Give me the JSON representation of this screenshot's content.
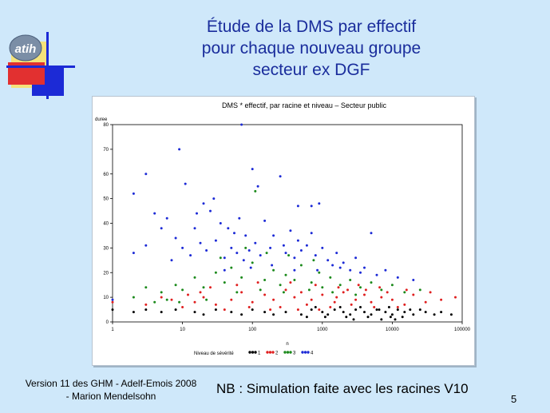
{
  "slide": {
    "title_lines": [
      "Étude de la DMS par effectif",
      "pour chaque nouveau groupe",
      "secteur ex DGF"
    ],
    "footer_left_lines": [
      "Version 11 des GHM - Adelf-Emois 2008",
      "- Marion Mendelsohn"
    ],
    "footer_note": "NB : Simulation faite avec les racines V10",
    "page_number": "5",
    "logo_text": "atih"
  },
  "colors": {
    "background": "#cfe8fa",
    "title": "#1a2d9c",
    "level1": "#000000",
    "level2": "#e02020",
    "level3": "#1c8a1c",
    "level4": "#1c2ad6"
  },
  "chart_data": {
    "type": "scatter",
    "title": "DMS * effectif, par racine et niveau – Secteur public",
    "xlabel": "n",
    "ylabel": "duree",
    "xscale": "log",
    "xlim": [
      1,
      100000
    ],
    "ylim": [
      0,
      80
    ],
    "xticks": [
      "1",
      "10",
      "100",
      "1000",
      "10000",
      "100000"
    ],
    "yticks": [
      "0",
      "10",
      "20",
      "30",
      "40",
      "50",
      "60",
      "70",
      "80"
    ],
    "grid": false,
    "legend_title": "Niveau de sévérité",
    "legend_placement": "bottom",
    "series": [
      {
        "name": "1",
        "color": "#000000",
        "points": [
          [
            1,
            5
          ],
          [
            2,
            4
          ],
          [
            3,
            5
          ],
          [
            5,
            4
          ],
          [
            8,
            5
          ],
          [
            15,
            4
          ],
          [
            20,
            3
          ],
          [
            30,
            5
          ],
          [
            50,
            4
          ],
          [
            70,
            3
          ],
          [
            100,
            5
          ],
          [
            150,
            4
          ],
          [
            200,
            3
          ],
          [
            300,
            4
          ],
          [
            500,
            3
          ],
          [
            700,
            5
          ],
          [
            1000,
            4
          ],
          [
            1200,
            3
          ],
          [
            1500,
            5
          ],
          [
            2000,
            4
          ],
          [
            2500,
            3
          ],
          [
            3000,
            5
          ],
          [
            4000,
            4
          ],
          [
            5000,
            3
          ],
          [
            6000,
            5
          ],
          [
            8000,
            4
          ],
          [
            10000,
            3
          ],
          [
            12000,
            5
          ],
          [
            15000,
            4
          ],
          [
            20000,
            3
          ],
          [
            25000,
            5
          ],
          [
            30000,
            4
          ],
          [
            40000,
            3
          ],
          [
            50000,
            4
          ],
          [
            70000,
            3
          ],
          [
            800,
            6
          ],
          [
            1800,
            6
          ],
          [
            3500,
            6
          ],
          [
            6500,
            5
          ],
          [
            9000,
            6
          ],
          [
            18000,
            5
          ],
          [
            600,
            2
          ],
          [
            1100,
            2
          ],
          [
            2200,
            2
          ],
          [
            4500,
            2
          ],
          [
            9500,
            2
          ],
          [
            14000,
            2
          ],
          [
            2800,
            1
          ],
          [
            7000,
            1
          ],
          [
            11000,
            1
          ]
        ]
      },
      {
        "name": "2",
        "color": "#e02020",
        "points": [
          [
            1,
            8
          ],
          [
            3,
            7
          ],
          [
            7,
            9
          ],
          [
            10,
            6
          ],
          [
            15,
            8
          ],
          [
            20,
            10
          ],
          [
            30,
            7
          ],
          [
            50,
            9
          ],
          [
            70,
            12
          ],
          [
            100,
            8
          ],
          [
            150,
            11
          ],
          [
            200,
            9
          ],
          [
            300,
            13
          ],
          [
            400,
            10
          ],
          [
            500,
            12
          ],
          [
            700,
            9
          ],
          [
            1000,
            11
          ],
          [
            1500,
            8
          ],
          [
            2000,
            12
          ],
          [
            3000,
            9
          ],
          [
            4000,
            11
          ],
          [
            5000,
            8
          ],
          [
            7000,
            10
          ],
          [
            10000,
            9
          ],
          [
            15000,
            7
          ],
          [
            20000,
            11
          ],
          [
            30000,
            8
          ],
          [
            50000,
            9
          ],
          [
            80000,
            10
          ],
          [
            250,
            6
          ],
          [
            600,
            7
          ],
          [
            1300,
            6
          ],
          [
            2600,
            7
          ],
          [
            5500,
            6
          ],
          [
            12000,
            6
          ],
          [
            350,
            16
          ],
          [
            800,
            15
          ],
          [
            1700,
            14
          ],
          [
            3300,
            15
          ],
          [
            6600,
            14
          ],
          [
            25,
            14
          ],
          [
            60,
            15
          ],
          [
            120,
            16
          ],
          [
            40,
            5
          ],
          [
            90,
            6
          ],
          [
            180,
            5
          ],
          [
            450,
            5
          ],
          [
            900,
            5
          ],
          [
            1600,
            10
          ],
          [
            2300,
            13
          ],
          [
            4200,
            13
          ],
          [
            8500,
            12
          ],
          [
            16000,
            13
          ],
          [
            35000,
            12
          ],
          [
            18,
            12
          ],
          [
            12,
            11
          ],
          [
            5,
            10
          ]
        ]
      },
      {
        "name": "3",
        "color": "#1c8a1c",
        "points": [
          [
            2,
            10
          ],
          [
            3,
            14
          ],
          [
            5,
            12
          ],
          [
            8,
            15
          ],
          [
            10,
            13
          ],
          [
            15,
            18
          ],
          [
            20,
            14
          ],
          [
            30,
            20
          ],
          [
            40,
            16
          ],
          [
            50,
            22
          ],
          [
            70,
            18
          ],
          [
            100,
            24
          ],
          [
            150,
            17
          ],
          [
            200,
            21
          ],
          [
            250,
            15
          ],
          [
            300,
            19
          ],
          [
            400,
            17
          ],
          [
            500,
            23
          ],
          [
            700,
            16
          ],
          [
            900,
            20
          ],
          [
            1000,
            14
          ],
          [
            1300,
            18
          ],
          [
            1800,
            15
          ],
          [
            2500,
            17
          ],
          [
            3500,
            14
          ],
          [
            5000,
            16
          ],
          [
            7000,
            13
          ],
          [
            10000,
            15
          ],
          [
            15000,
            12
          ],
          [
            25000,
            13
          ],
          [
            60,
            12
          ],
          [
            130,
            13
          ],
          [
            280,
            12
          ],
          [
            650,
            13
          ],
          [
            1400,
            12
          ],
          [
            3000,
            11
          ],
          [
            110,
            53
          ],
          [
            80,
            30
          ],
          [
            35,
            26
          ],
          [
            160,
            28
          ],
          [
            330,
            27
          ],
          [
            750,
            25
          ],
          [
            4,
            8
          ],
          [
            6,
            9
          ],
          [
            9,
            8
          ],
          [
            22,
            9
          ]
        ]
      },
      {
        "name": "4",
        "color": "#1c2ad6",
        "points": [
          [
            1,
            9
          ],
          [
            2,
            52
          ],
          [
            2,
            28
          ],
          [
            3,
            60
          ],
          [
            3,
            31
          ],
          [
            4,
            44
          ],
          [
            5,
            38
          ],
          [
            6,
            42
          ],
          [
            7,
            25
          ],
          [
            8,
            34
          ],
          [
            9,
            70
          ],
          [
            10,
            30
          ],
          [
            11,
            56
          ],
          [
            13,
            27
          ],
          [
            15,
            38
          ],
          [
            18,
            32
          ],
          [
            20,
            48
          ],
          [
            22,
            29
          ],
          [
            25,
            45
          ],
          [
            30,
            33
          ],
          [
            35,
            40
          ],
          [
            40,
            26
          ],
          [
            45,
            38
          ],
          [
            50,
            30
          ],
          [
            55,
            36
          ],
          [
            60,
            28
          ],
          [
            65,
            42
          ],
          [
            70,
            80
          ],
          [
            75,
            25
          ],
          [
            80,
            35
          ],
          [
            90,
            29
          ],
          [
            100,
            62
          ],
          [
            110,
            32
          ],
          [
            130,
            27
          ],
          [
            150,
            41
          ],
          [
            180,
            30
          ],
          [
            200,
            35
          ],
          [
            250,
            59
          ],
          [
            280,
            31
          ],
          [
            300,
            28
          ],
          [
            350,
            37
          ],
          [
            400,
            26
          ],
          [
            450,
            33
          ],
          [
            500,
            29
          ],
          [
            600,
            31
          ],
          [
            700,
            36
          ],
          [
            800,
            27
          ],
          [
            900,
            48
          ],
          [
            1000,
            30
          ],
          [
            1200,
            25
          ],
          [
            1400,
            23
          ],
          [
            1600,
            28
          ],
          [
            1800,
            22
          ],
          [
            2000,
            24
          ],
          [
            2500,
            21
          ],
          [
            3000,
            26
          ],
          [
            3500,
            20
          ],
          [
            4000,
            22
          ],
          [
            5000,
            36
          ],
          [
            6000,
            19
          ],
          [
            8000,
            21
          ],
          [
            12000,
            18
          ],
          [
            20000,
            17
          ],
          [
            28,
            50
          ],
          [
            16,
            44
          ],
          [
            120,
            55
          ],
          [
            450,
            47
          ],
          [
            700,
            47
          ],
          [
            40,
            21
          ],
          [
            95,
            22
          ],
          [
            190,
            23
          ],
          [
            400,
            21
          ],
          [
            850,
            21
          ]
        ]
      }
    ]
  }
}
